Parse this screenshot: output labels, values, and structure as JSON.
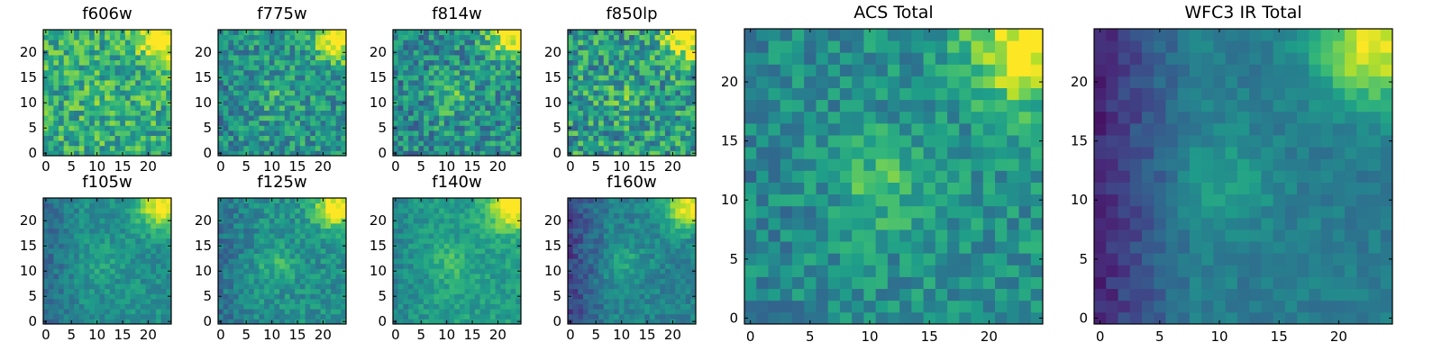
{
  "figure": {
    "description_free": true,
    "colormap": "viridis",
    "colormap_stops": [
      "#440154",
      "#482878",
      "#3e4989",
      "#31688e",
      "#26828e",
      "#1f9e89",
      "#35b779",
      "#6ece58",
      "#b5de2b",
      "#fde725"
    ],
    "frame_color": "#000000"
  },
  "chart_data": [
    {
      "type": "heatmap",
      "title": "f606w",
      "grid_size": 25,
      "xticks": [
        0,
        5,
        10,
        15,
        20
      ],
      "yticks": [
        0,
        5,
        10,
        15,
        20
      ],
      "xlim": [
        0,
        24
      ],
      "ylim": [
        0,
        24
      ],
      "mean_level": 0.62,
      "noise": 0.22,
      "hot_corner": "top-right",
      "center_blob": 0.05,
      "left_dark": 0.0,
      "seed": 11
    },
    {
      "type": "heatmap",
      "title": "f775w",
      "grid_size": 25,
      "xticks": [
        0,
        5,
        10,
        15,
        20
      ],
      "yticks": [
        0,
        5,
        10,
        15,
        20
      ],
      "xlim": [
        0,
        24
      ],
      "ylim": [
        0,
        24
      ],
      "mean_level": 0.52,
      "noise": 0.2,
      "hot_corner": "top-right",
      "center_blob": 0.12,
      "left_dark": 0.05,
      "seed": 23
    },
    {
      "type": "heatmap",
      "title": "f814w",
      "grid_size": 25,
      "xticks": [
        0,
        5,
        10,
        15,
        20
      ],
      "yticks": [
        0,
        5,
        10,
        15,
        20
      ],
      "xlim": [
        0,
        24
      ],
      "ylim": [
        0,
        24
      ],
      "mean_level": 0.5,
      "noise": 0.22,
      "hot_corner": "top-right",
      "center_blob": 0.18,
      "left_dark": 0.05,
      "seed": 37
    },
    {
      "type": "heatmap",
      "title": "f850lp",
      "grid_size": 25,
      "xticks": [
        0,
        5,
        10,
        15,
        20
      ],
      "yticks": [
        0,
        5,
        10,
        15,
        20
      ],
      "xlim": [
        0,
        24
      ],
      "ylim": [
        0,
        24
      ],
      "mean_level": 0.55,
      "noise": 0.25,
      "hot_corner": "top-right",
      "center_blob": 0.1,
      "left_dark": 0.0,
      "seed": 41
    },
    {
      "type": "heatmap",
      "title": "f105w",
      "grid_size": 25,
      "xticks": [
        0,
        5,
        10,
        15,
        20
      ],
      "yticks": [
        0,
        5,
        10,
        15,
        20
      ],
      "xlim": [
        0,
        24
      ],
      "ylim": [
        0,
        24
      ],
      "mean_level": 0.5,
      "noise": 0.1,
      "hot_corner": "top-right",
      "center_blob": 0.08,
      "left_dark": 0.15,
      "seed": 53
    },
    {
      "type": "heatmap",
      "title": "f125w",
      "grid_size": 25,
      "xticks": [
        0,
        5,
        10,
        15,
        20
      ],
      "yticks": [
        0,
        5,
        10,
        15,
        20
      ],
      "xlim": [
        0,
        24
      ],
      "ylim": [
        0,
        24
      ],
      "mean_level": 0.5,
      "noise": 0.12,
      "hot_corner": "top-right",
      "center_blob": 0.15,
      "left_dark": 0.12,
      "seed": 67
    },
    {
      "type": "heatmap",
      "title": "f140w",
      "grid_size": 25,
      "xticks": [
        0,
        5,
        10,
        15,
        20
      ],
      "yticks": [
        0,
        5,
        10,
        15,
        20
      ],
      "xlim": [
        0,
        24
      ],
      "ylim": [
        0,
        24
      ],
      "mean_level": 0.56,
      "noise": 0.1,
      "hot_corner": "top-right",
      "center_blob": 0.12,
      "left_dark": 0.1,
      "seed": 71
    },
    {
      "type": "heatmap",
      "title": "f160w",
      "grid_size": 25,
      "xticks": [
        0,
        5,
        10,
        15,
        20
      ],
      "yticks": [
        0,
        5,
        10,
        15,
        20
      ],
      "xlim": [
        0,
        24
      ],
      "ylim": [
        0,
        24
      ],
      "mean_level": 0.45,
      "noise": 0.1,
      "hot_corner": "top-right",
      "center_blob": 0.15,
      "left_dark": 0.25,
      "seed": 83
    },
    {
      "type": "heatmap",
      "title": "ACS Total",
      "grid_size": 25,
      "xticks": [
        0,
        5,
        10,
        15,
        20
      ],
      "yticks": [
        0,
        5,
        10,
        15,
        20
      ],
      "xlim": [
        0,
        24
      ],
      "ylim": [
        0,
        24
      ],
      "mean_level": 0.5,
      "noise": 0.15,
      "hot_corner": "top-right",
      "center_blob": 0.2,
      "left_dark": 0.05,
      "seed": 97
    },
    {
      "type": "heatmap",
      "title": "WFC3 IR Total",
      "grid_size": 25,
      "xticks": [
        0,
        5,
        10,
        15,
        20
      ],
      "yticks": [
        0,
        5,
        10,
        15,
        20
      ],
      "xlim": [
        0,
        24
      ],
      "ylim": [
        0,
        24
      ],
      "mean_level": 0.42,
      "noise": 0.07,
      "hot_corner": "top-right",
      "center_blob": 0.15,
      "left_dark": 0.3,
      "seed": 101
    }
  ]
}
